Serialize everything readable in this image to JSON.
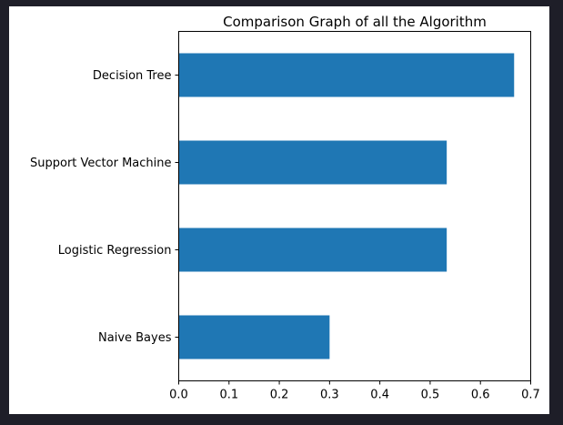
{
  "chart_data": {
    "type": "bar",
    "orientation": "horizontal",
    "title": "Comparison Graph of all the Algorithm",
    "xlabel": "",
    "ylabel": "",
    "categories": [
      "Naive Bayes",
      "Logistic Regression",
      "Support Vector Machine",
      "Decision Tree"
    ],
    "values": [
      0.3,
      0.533,
      0.533,
      0.667
    ],
    "xlim": [
      0,
      0.7
    ],
    "xticks": [
      "0.0",
      "0.1",
      "0.2",
      "0.3",
      "0.4",
      "0.5",
      "0.6",
      "0.7"
    ],
    "grid": false,
    "bar_color": "#1f77b4"
  }
}
